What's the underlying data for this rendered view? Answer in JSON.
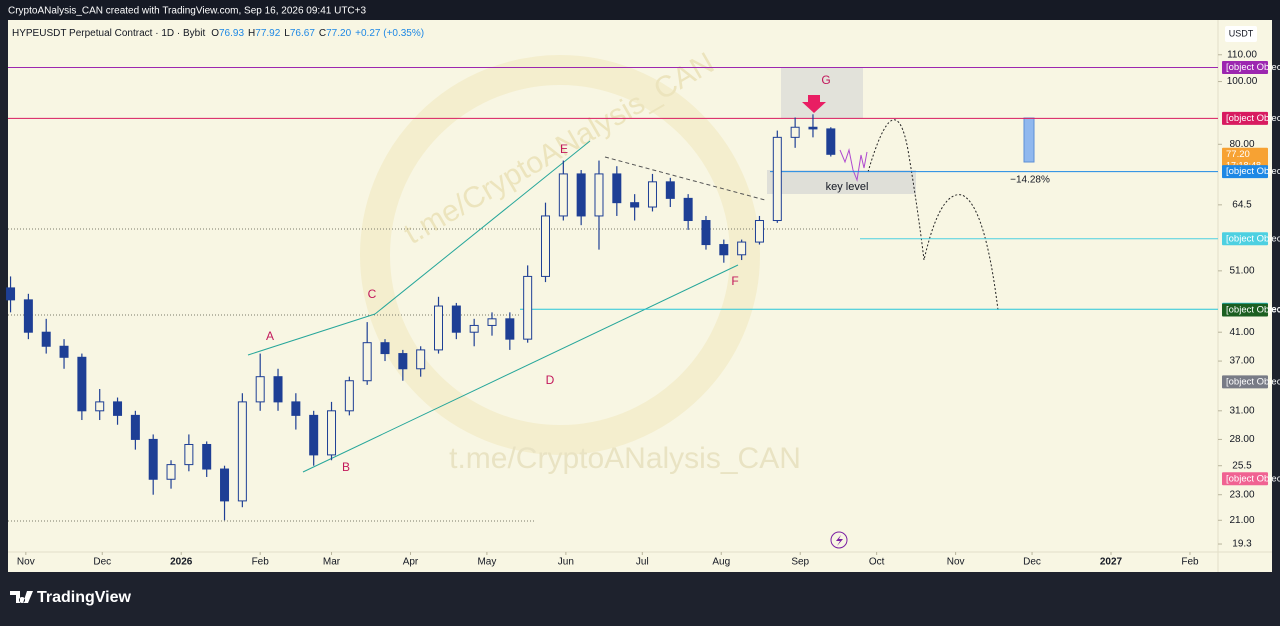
{
  "header": {
    "credit": "CryptoANalysis_CAN created with TradingView.com, Sep 16, 2026 09:41 UTC+3"
  },
  "footer": {
    "brand": "TradingView"
  },
  "chart_data": {
    "type": "candlestick",
    "symbol": "HYPEUSDT Perpetual Contract · 1D · Bybit",
    "ohlc_legend": [
      {
        "label": "O",
        "value": "76.93"
      },
      {
        "label": "H",
        "value": "77.92"
      },
      {
        "label": "L",
        "value": "76.67"
      },
      {
        "label": "C",
        "value": "77.20"
      }
    ],
    "change": "+0.27 (+0.35%)",
    "currency": "USDT",
    "log_scale": true,
    "up_color": "#1e3f95",
    "down_color": "#1e3f95",
    "x": [
      -6,
      1,
      8,
      15,
      22,
      29,
      36,
      43,
      50,
      57,
      64,
      71,
      78,
      85,
      92,
      99,
      106,
      113,
      120,
      127,
      134,
      141,
      148,
      155,
      162,
      169,
      176,
      183,
      190,
      197,
      204,
      211,
      218,
      225,
      232,
      239,
      246,
      253,
      260,
      267,
      274,
      281,
      288,
      295,
      302,
      309,
      316
    ],
    "open": [
      48,
      46,
      41,
      39,
      37.5,
      31,
      32,
      30.5,
      28,
      24.3,
      25.6,
      27.5,
      25.2,
      22.5,
      32,
      35,
      32,
      30.5,
      26.5,
      31,
      34.5,
      39.5,
      38,
      36,
      38.5,
      45,
      41,
      42,
      43,
      40,
      50,
      62,
      72,
      62,
      72,
      65,
      64,
      70,
      66,
      61,
      56,
      54,
      56.5,
      61,
      82,
      85,
      84.5
    ],
    "high": [
      50,
      47,
      43,
      40,
      38,
      33.5,
      32.5,
      31,
      28.5,
      26,
      28.5,
      27.8,
      25.5,
      33,
      38,
      36,
      33,
      31,
      32,
      35,
      42.5,
      40,
      38.5,
      39,
      46.5,
      45.5,
      43,
      44,
      44,
      52,
      65,
      75.5,
      73,
      75.5,
      74,
      67,
      72,
      71,
      67,
      62,
      57,
      57,
      62,
      84,
      88,
      89,
      85
    ],
    "low": [
      44,
      40,
      38,
      36,
      30,
      30,
      29.5,
      27,
      23,
      23.5,
      25,
      24.5,
      21,
      22,
      31,
      31,
      29,
      25.5,
      26,
      30.5,
      34,
      37,
      34.5,
      35,
      38,
      40,
      39,
      40.5,
      38.5,
      39.5,
      49,
      61,
      60,
      55,
      62,
      61,
      63,
      64,
      59,
      55,
      52.5,
      53,
      56,
      60.5,
      79,
      82,
      76.6
    ],
    "close": [
      46,
      41,
      39,
      37.5,
      31,
      32,
      30.5,
      28,
      24.3,
      25.6,
      27.5,
      25.2,
      22.5,
      32,
      35,
      32,
      30.5,
      26.5,
      31,
      34.5,
      39.5,
      38,
      36,
      38.5,
      45,
      41,
      42,
      43,
      40,
      50,
      62,
      72,
      62,
      72,
      65,
      64,
      70,
      66,
      61,
      56,
      54,
      56.5,
      61,
      82,
      85,
      84.5,
      77.2
    ],
    "xlim": [
      -7,
      468
    ],
    "xticks": [
      {
        "value": 0,
        "label": "Nov"
      },
      {
        "value": 30,
        "label": "Dec"
      },
      {
        "value": 61,
        "label": "2026"
      },
      {
        "value": 92,
        "label": "Feb"
      },
      {
        "value": 120,
        "label": "Mar"
      },
      {
        "value": 151,
        "label": "Apr"
      },
      {
        "value": 181,
        "label": "May"
      },
      {
        "value": 212,
        "label": "Jun"
      },
      {
        "value": 242,
        "label": "Jul"
      },
      {
        "value": 273,
        "label": "Aug"
      },
      {
        "value": 304,
        "label": "Sep"
      },
      {
        "value": 334,
        "label": "Oct"
      },
      {
        "value": 365,
        "label": "Nov"
      },
      {
        "value": 395,
        "label": "Dec"
      },
      {
        "value": 426,
        "label": "2027"
      },
      {
        "value": 457,
        "label": "Feb"
      }
    ],
    "ylim": [
      18.76,
      123.6
    ],
    "yticks": [
      {
        "value": 110,
        "label": "110.00"
      },
      {
        "value": 100,
        "label": "100.00"
      },
      {
        "value": 80,
        "label": "80.00"
      },
      64.5,
      {
        "value": 51,
        "label": "51.00"
      },
      {
        "value": 41,
        "label": "41.00"
      },
      {
        "value": 37,
        "label": "37.00"
      },
      {
        "value": 31,
        "label": "31.00"
      },
      {
        "value": 28,
        "label": "28.00"
      },
      25.5,
      {
        "value": 23,
        "label": "23.00"
      },
      {
        "value": 21,
        "label": "21.00"
      },
      19.3
    ],
    "price_levels": [
      {
        "value": 105.11,
        "color": "#9c27b0",
        "line": true
      },
      {
        "value": 87.72,
        "color": "#d81b60",
        "line": true
      },
      {
        "value": 77.2,
        "label": "77.20",
        "color": "#f7a233",
        "line": false
      },
      {
        "value": 72.58,
        "color": "#1e88e5",
        "line": true
      },
      {
        "value": 57.17,
        "color": "#4dd0e1",
        "line": true
      },
      {
        "value": 44.48,
        "color": "#26c6da",
        "line": true
      },
      {
        "value": 44.38,
        "color": "#1b5e20",
        "line": false
      },
      {
        "value": 34.36,
        "color": "#787b86",
        "line": false
      },
      {
        "value": 24.34,
        "color": "#f06292",
        "line": false
      }
    ],
    "countdown": "17:18:48",
    "wave_labels": [
      "A",
      "B",
      "C",
      "D",
      "E",
      "F",
      "G"
    ],
    "key_level": "key level",
    "measure": "−14.28%",
    "watermark": "t.me/CryptoANalysis_CAN"
  }
}
